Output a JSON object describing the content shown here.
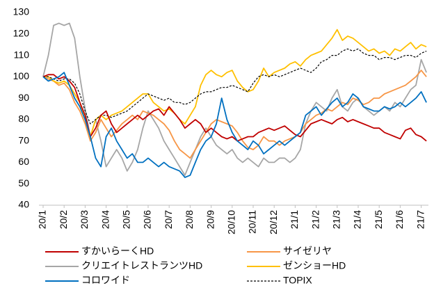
{
  "chart_data": {
    "type": "line",
    "categories": [
      "20/1",
      null,
      null,
      null,
      "20/2",
      null,
      null,
      null,
      "20/3",
      null,
      null,
      null,
      "20/4",
      null,
      null,
      null,
      "20/5",
      null,
      null,
      null,
      "20/6",
      null,
      null,
      null,
      "20/7",
      null,
      null,
      null,
      "20/8",
      null,
      null,
      null,
      "20/9",
      null,
      null,
      null,
      "20/10",
      null,
      null,
      null,
      "20/11",
      null,
      null,
      null,
      "20/12",
      null,
      null,
      null,
      "21/1",
      null,
      null,
      null,
      "21/2",
      null,
      null,
      null,
      "21/3",
      null,
      null,
      null,
      "21/4",
      null,
      null,
      null,
      "21/5",
      null,
      null,
      null,
      "21/6",
      null,
      null,
      null,
      "21/7",
      null
    ],
    "ylim": [
      40,
      130
    ],
    "yticks": [
      40,
      50,
      60,
      70,
      80,
      90,
      100,
      110,
      120,
      130
    ],
    "grid": false,
    "legend": "bottom",
    "series": [
      {
        "name": "すかいらーくHD",
        "color": "#c00000",
        "dashed": false,
        "values": [
          100,
          101,
          101,
          99,
          100,
          98,
          95,
          88,
          82,
          72,
          76,
          82,
          84,
          78,
          74,
          76,
          78,
          80,
          82,
          80,
          82,
          84,
          85,
          82,
          86,
          83,
          80,
          76,
          78,
          80,
          78,
          74,
          76,
          74,
          72,
          71,
          72,
          70,
          71,
          72,
          72,
          74,
          75,
          76,
          75,
          76,
          77,
          75,
          73,
          72,
          75,
          78,
          79,
          80,
          79,
          78,
          80,
          81,
          79,
          80,
          79,
          78,
          77,
          76,
          76,
          74,
          73,
          72,
          71,
          75,
          76,
          73,
          72,
          70
        ]
      },
      {
        "name": "サイゼリヤ",
        "color": "#f79646",
        "dashed": false,
        "values": [
          100,
          99,
          98,
          96,
          97,
          94,
          88,
          84,
          78,
          70,
          74,
          80,
          76,
          72,
          75,
          78,
          80,
          82,
          80,
          84,
          83,
          82,
          80,
          78,
          75,
          70,
          66,
          64,
          62,
          66,
          70,
          74,
          78,
          80,
          79,
          78,
          77,
          74,
          70,
          67,
          66,
          68,
          72,
          70,
          70,
          68,
          70,
          71,
          72,
          74,
          78,
          80,
          82,
          83,
          85,
          84,
          86,
          88,
          87,
          90,
          89,
          87,
          88,
          90,
          90,
          92,
          93,
          94,
          95,
          96,
          98,
          100,
          103,
          100
        ]
      },
      {
        "name": "クリエイトレストランツHD",
        "color": "#a6a6a6",
        "dashed": false,
        "values": [
          100,
          110,
          124,
          125,
          124,
          125,
          118,
          100,
          85,
          72,
          80,
          70,
          58,
          62,
          66,
          62,
          56,
          60,
          66,
          76,
          84,
          80,
          76,
          70,
          66,
          62,
          58,
          54,
          60,
          66,
          72,
          76,
          72,
          68,
          66,
          64,
          66,
          62,
          60,
          62,
          60,
          58,
          62,
          60,
          60,
          62,
          62,
          60,
          62,
          66,
          78,
          84,
          88,
          86,
          84,
          90,
          94,
          86,
          84,
          88,
          90,
          86,
          84,
          82,
          84,
          86,
          84,
          88,
          86,
          90,
          94,
          96,
          108,
          102
        ]
      },
      {
        "name": "ゼンショーHD",
        "color": "#ffc000",
        "dashed": false,
        "values": [
          100,
          100,
          98,
          97,
          98,
          96,
          92,
          88,
          80,
          72,
          80,
          82,
          80,
          82,
          83,
          84,
          86,
          88,
          90,
          92,
          92,
          88,
          86,
          84,
          85,
          83,
          80,
          78,
          82,
          86,
          96,
          101,
          103,
          101,
          100,
          102,
          103,
          98,
          95,
          93,
          94,
          98,
          104,
          100,
          102,
          103,
          104,
          106,
          107,
          105,
          108,
          110,
          111,
          112,
          115,
          118,
          122,
          117,
          119,
          118,
          116,
          114,
          112,
          113,
          111,
          112,
          110,
          113,
          112,
          114,
          116,
          113,
          115,
          114
        ]
      },
      {
        "name": "コロワイド",
        "color": "#0070c0",
        "dashed": false,
        "values": [
          100,
          98,
          99,
          100,
          102,
          96,
          90,
          86,
          80,
          72,
          62,
          58,
          72,
          76,
          70,
          66,
          62,
          64,
          60,
          60,
          62,
          60,
          58,
          60,
          58,
          57,
          56,
          53,
          54,
          60,
          66,
          70,
          72,
          78,
          90,
          80,
          74,
          70,
          68,
          66,
          70,
          68,
          64,
          66,
          68,
          70,
          68,
          70,
          72,
          74,
          82,
          84,
          86,
          82,
          85,
          88,
          90,
          86,
          88,
          92,
          90,
          86,
          85,
          84,
          84,
          86,
          85,
          86,
          88,
          86,
          88,
          90,
          93,
          88
        ]
      },
      {
        "name": "TOPIX",
        "color": "#000000",
        "dashed": true,
        "values": [
          100,
          100,
          99,
          98,
          99,
          99,
          97,
          92,
          84,
          78,
          80,
          82,
          82,
          81,
          82,
          83,
          84,
          86,
          88,
          90,
          92,
          91,
          90,
          89,
          90,
          88,
          88,
          87,
          88,
          90,
          92,
          93,
          93,
          94,
          95,
          95,
          96,
          95,
          94,
          93,
          97,
          100,
          101,
          100,
          101,
          100,
          101,
          102,
          103,
          104,
          103,
          102,
          104,
          107,
          108,
          110,
          110,
          112,
          113,
          112,
          113,
          111,
          110,
          110,
          108,
          109,
          109,
          108,
          109,
          110,
          110,
          109,
          111,
          112
        ]
      }
    ]
  }
}
